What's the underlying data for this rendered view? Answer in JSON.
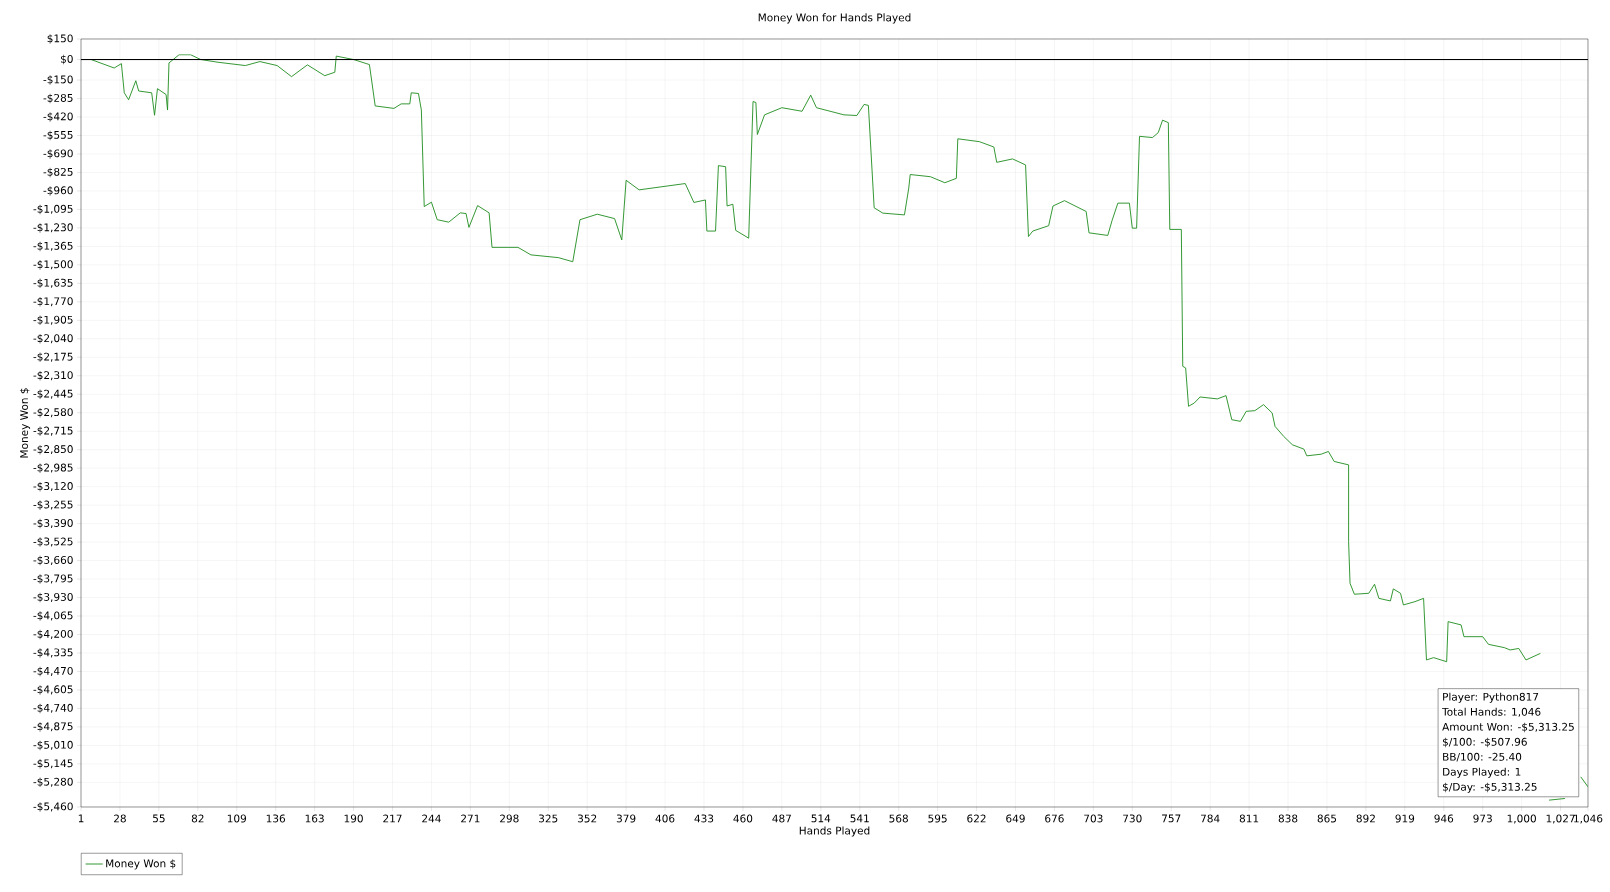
{
  "chart_data": {
    "type": "line",
    "title": "Money Won for Hands Played",
    "xlabel": "Hands Played",
    "ylabel": "Money Won $",
    "xlim": [
      1,
      1046
    ],
    "ylim": [
      -5460,
      150
    ],
    "xticks": [
      1,
      28,
      55,
      82,
      109,
      136,
      163,
      190,
      217,
      244,
      271,
      298,
      325,
      352,
      379,
      406,
      433,
      460,
      487,
      514,
      541,
      568,
      595,
      622,
      649,
      676,
      703,
      730,
      757,
      784,
      811,
      838,
      865,
      892,
      919,
      946,
      973,
      {
        "value": 1000,
        "label": "1,000"
      },
      {
        "value": 1027,
        "label": "1,027"
      },
      {
        "value": 1046,
        "label": "1,046"
      }
    ],
    "yticks": [
      {
        "value": 150,
        "label": "$150"
      },
      {
        "value": 0,
        "label": "$0"
      },
      {
        "value": -150,
        "label": "-$150"
      },
      {
        "value": -285,
        "label": "-$285"
      },
      {
        "value": -420,
        "label": "-$420"
      },
      {
        "value": -555,
        "label": "-$555"
      },
      {
        "value": -690,
        "label": "-$690"
      },
      {
        "value": -825,
        "label": "-$825"
      },
      {
        "value": -960,
        "label": "-$960"
      },
      {
        "value": -1095,
        "label": "-$1,095"
      },
      {
        "value": -1230,
        "label": "-$1,230"
      },
      {
        "value": -1365,
        "label": "-$1,365"
      },
      {
        "value": -1500,
        "label": "-$1,500"
      },
      {
        "value": -1635,
        "label": "-$1,635"
      },
      {
        "value": -1770,
        "label": "-$1,770"
      },
      {
        "value": -1905,
        "label": "-$1,905"
      },
      {
        "value": -2040,
        "label": "-$2,040"
      },
      {
        "value": -2175,
        "label": "-$2,175"
      },
      {
        "value": -2310,
        "label": "-$2,310"
      },
      {
        "value": -2445,
        "label": "-$2,445"
      },
      {
        "value": -2580,
        "label": "-$2,580"
      },
      {
        "value": -2715,
        "label": "-$2,715"
      },
      {
        "value": -2850,
        "label": "-$2,850"
      },
      {
        "value": -2985,
        "label": "-$2,985"
      },
      {
        "value": -3120,
        "label": "-$3,120"
      },
      {
        "value": -3255,
        "label": "-$3,255"
      },
      {
        "value": -3390,
        "label": "-$3,390"
      },
      {
        "value": -3525,
        "label": "-$3,525"
      },
      {
        "value": -3660,
        "label": "-$3,660"
      },
      {
        "value": -3795,
        "label": "-$3,795"
      },
      {
        "value": -3930,
        "label": "-$3,930"
      },
      {
        "value": -4065,
        "label": "-$4,065"
      },
      {
        "value": -4200,
        "label": "-$4,200"
      },
      {
        "value": -4335,
        "label": "-$4,335"
      },
      {
        "value": -4470,
        "label": "-$4,470"
      },
      {
        "value": -4605,
        "label": "-$4,605"
      },
      {
        "value": -4740,
        "label": "-$4,740"
      },
      {
        "value": -4875,
        "label": "-$4,875"
      },
      {
        "value": -5010,
        "label": "-$5,010"
      },
      {
        "value": -5145,
        "label": "-$5,145"
      },
      {
        "value": -5280,
        "label": "-$5,280"
      },
      {
        "value": -5460,
        "label": "-$5,460"
      }
    ],
    "grid": true,
    "legend": "bottom left",
    "marker": "none",
    "line_style": "solid",
    "ref_lines": [
      {
        "axis": "y",
        "value": 0,
        "color": "#000000"
      }
    ],
    "annotations": [
      "Player: Python817",
      "Total Hands: 1,046",
      "Amount Won: -$5,313.25",
      "$/100: -$507.96",
      "BB/100: -25.40",
      "Days Played: 1",
      "$/Day: -$5,313.25"
    ],
    "series": [
      {
        "name": "Money Won $",
        "color": "#1e8c1e",
        "x": [
          1,
          8,
          24,
          29,
          31,
          34,
          39,
          41,
          50,
          52,
          54,
          60,
          61,
          62,
          69,
          77,
          84,
          96,
          115,
          125,
          137,
          147,
          158,
          170,
          177,
          178,
          190,
          201,
          205,
          218,
          223,
          229,
          230,
          235,
          237,
          239,
          244,
          248,
          256,
          264,
          268,
          270,
          276,
          284,
          286,
          304,
          313,
          332,
          342,
          347,
          359,
          371,
          376,
          379,
          388,
          420,
          426,
          434,
          435,
          441,
          443,
          448,
          449,
          453,
          455,
          464,
          467,
          469,
          470,
          475,
          487,
          501,
          507,
          511,
          530,
          539,
          544,
          547,
          551,
          557,
          572,
          575,
          576,
          590,
          600,
          608,
          609,
          624,
          634,
          636,
          647,
          656,
          658,
          661,
          672,
          675,
          683,
          698,
          700,
          713,
          716,
          720,
          728,
          730,
          733,
          735,
          744,
          748,
          751,
          755,
          756,
          764,
          765,
          767,
          769,
          773,
          777,
          789,
          795,
          799,
          805,
          809,
          815,
          821,
          827,
          829,
          835,
          841,
          849,
          851,
          861,
          866,
          870,
          880,
          880,
          881,
          884,
          894,
          898,
          901,
          909,
          911,
          916,
          918,
          926,
          932,
          934,
          939,
          948,
          949,
          958,
          960,
          973,
          977,
          988,
          992,
          998,
          1003,
          1013,
          1015,
          1019,
          1030,
          1035,
          1041,
          1046
        ],
        "values": [
          0,
          0,
          -62,
          -30,
          -243,
          -294,
          -155,
          -230,
          -243,
          -407,
          -213,
          -256,
          -369,
          -25,
          35,
          35,
          0,
          -20,
          -44,
          -15,
          -44,
          -125,
          -39,
          -118,
          -93,
          25,
          0,
          -37,
          -339,
          -357,
          -324,
          -324,
          -243,
          -248,
          -369,
          -1074,
          -1042,
          -1170,
          -1188,
          -1120,
          -1125,
          -1226,
          -1067,
          -1120,
          -1372,
          -1372,
          -1427,
          -1447,
          -1477,
          -1170,
          -1130,
          -1162,
          -1318,
          -882,
          -952,
          -906,
          -1044,
          -1026,
          -1253,
          -1253,
          -775,
          -783,
          -1070,
          -1057,
          -1248,
          -1305,
          -307,
          -314,
          -548,
          -404,
          -352,
          -378,
          -260,
          -352,
          -404,
          -409,
          -328,
          -335,
          -1083,
          -1122,
          -1135,
          -939,
          -840,
          -856,
          -900,
          -868,
          -579,
          -600,
          -639,
          -751,
          -726,
          -770,
          -1293,
          -1253,
          -1214,
          -1070,
          -1031,
          -1110,
          -1266,
          -1285,
          -1175,
          -1049,
          -1049,
          -1232,
          -1232,
          -561,
          -570,
          -534,
          -443,
          -461,
          -1241,
          -1241,
          -2241,
          -2253,
          -2533,
          -2509,
          -2465,
          -2479,
          -2455,
          -2631,
          -2643,
          -2570,
          -2565,
          -2521,
          -2582,
          -2680,
          -2753,
          -2814,
          -2846,
          -2895,
          -2883,
          -2863,
          -2936,
          -2961,
          -3521,
          -3826,
          -3906,
          -3899,
          -3833,
          -3936,
          -3955,
          -3867,
          -3899,
          -3984,
          -3960,
          -3936,
          -4386,
          -4369,
          -4399,
          -4106,
          -4130,
          -4216,
          -4216,
          -4272,
          -4296,
          -4313,
          -4302,
          -4386,
          -4338,
          null,
          -5410,
          -5398,
          null,
          -5240,
          -5313
        ]
      }
    ]
  }
}
